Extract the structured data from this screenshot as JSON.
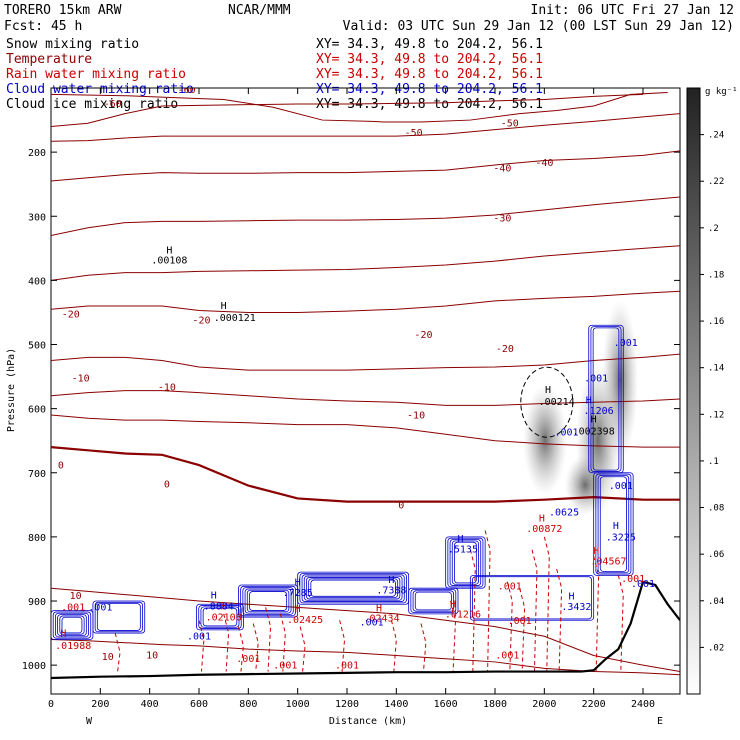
{
  "header": {
    "model": "TORERO  15km ARW",
    "center": "NCAR/MMM",
    "init": "Init: 06 UTC Fri 27 Jan 12",
    "fcst": "Fcst:   45 h",
    "valid": "Valid: 03 UTC Sun 29 Jan 12 (00 LST Sun 29 Jan 12)"
  },
  "fields": [
    {
      "name": "Snow mixing ratio",
      "xy": "XY=  34.3, 49.8 to 204.2, 56.1",
      "color": "#000000",
      "xy_color": "#000000"
    },
    {
      "name": "Temperature",
      "xy": "XY=  34.3, 49.8 to 204.2, 56.1",
      "color": "#8b0000",
      "xy_color": "#cc0000"
    },
    {
      "name": "Rain water mixing ratio",
      "xy": "XY=  34.3, 49.8 to 204.2, 56.1",
      "color": "#cc0000",
      "xy_color": "#cc0000"
    },
    {
      "name": "Cloud water mixing ratio",
      "xy": "XY=  34.3, 49.8 to 204.2, 56.1",
      "color": "#0000cc",
      "xy_color": "#0000cc"
    },
    {
      "name": "Cloud ice mixing ratio",
      "xy": "XY=  34.3, 49.8 to 204.2, 56.1",
      "color": "#000000",
      "xy_color": "#000000"
    }
  ],
  "chart_data": {
    "type": "contour-cross-section",
    "xlabel": "Distance (km)",
    "ylabel": "Pressure (hPa)",
    "x_ticks": [
      0,
      200,
      400,
      600,
      800,
      1000,
      1200,
      1400,
      1600,
      1800,
      2000,
      2200,
      2400
    ],
    "y_ticks": [
      200,
      300,
      400,
      500,
      600,
      700,
      800,
      900,
      1000
    ],
    "xlim": [
      0,
      2550
    ],
    "ylim": [
      1045,
      100
    ],
    "left_end": "W",
    "right_end": "E",
    "colorbar": {
      "unit": "g kg⁻¹",
      "ticks": [
        ".02",
        ".04",
        ".06",
        ".08",
        ".1",
        ".12",
        ".14",
        ".16",
        ".18",
        ".2",
        ".22",
        ".24"
      ],
      "values": [
        0.02,
        0.04,
        0.06,
        0.08,
        0.1,
        0.12,
        0.14,
        0.16,
        0.18,
        0.2,
        0.22,
        0.24
      ],
      "max": 0.26
    },
    "temperature_isotherms": [
      {
        "label": "-60",
        "p": [
          110,
          112,
          115,
          118,
          130,
          150,
          152,
          153,
          153,
          150,
          140,
          135,
          128,
          110,
          107
        ],
        "x": [
          0,
          300,
          500,
          700,
          900,
          1100,
          1300,
          1350,
          1500,
          1700,
          1900,
          2050,
          2200,
          2350,
          2500
        ]
      },
      {
        "label": "-60",
        "p": [
          160,
          155,
          140,
          128,
          127,
          126,
          125,
          125,
          124,
          123,
          120,
          118,
          113,
          110
        ],
        "x": [
          0,
          150,
          300,
          450,
          600,
          800,
          1000,
          1200,
          1400,
          1600,
          1800,
          2000,
          2200,
          2400
        ]
      },
      {
        "label": "-50",
        "p": [
          183,
          182,
          178,
          175,
          175,
          175,
          175,
          175,
          175,
          172,
          165,
          158,
          152,
          145,
          140
        ],
        "x": [
          0,
          150,
          300,
          450,
          600,
          800,
          1000,
          1200,
          1400,
          1600,
          1800,
          2000,
          2200,
          2400,
          2550
        ]
      },
      {
        "label": "-40",
        "p": [
          245,
          240,
          235,
          232,
          233,
          233,
          232,
          232,
          230,
          228,
          220,
          213,
          210,
          205,
          198
        ],
        "x": [
          0,
          150,
          300,
          450,
          600,
          800,
          1000,
          1200,
          1400,
          1600,
          1800,
          2000,
          2200,
          2400,
          2550
        ]
      },
      {
        "label": "-30",
        "p": [
          330,
          318,
          310,
          308,
          308,
          307,
          306,
          306,
          305,
          303,
          298,
          290,
          282,
          275,
          270
        ],
        "x": [
          0,
          150,
          300,
          450,
          600,
          800,
          1000,
          1200,
          1400,
          1600,
          1800,
          2000,
          2200,
          2400,
          2550
        ]
      },
      {
        "label": "-20",
        "p": [
          400,
          392,
          388,
          388,
          386,
          385,
          384,
          383,
          380,
          376,
          370,
          362,
          356,
          350,
          346
        ],
        "x": [
          0,
          150,
          300,
          450,
          600,
          800,
          1000,
          1200,
          1400,
          1600,
          1800,
          2000,
          2200,
          2400,
          2550
        ]
      },
      {
        "label": "-20",
        "p": [
          445,
          440,
          440,
          440,
          447,
          450,
          450,
          448,
          445,
          440,
          432,
          428,
          425,
          420,
          417
        ],
        "x": [
          0,
          150,
          300,
          450,
          600,
          800,
          1000,
          1200,
          1400,
          1600,
          1800,
          2000,
          2200,
          2400,
          2550
        ]
      },
      {
        "label": "-10",
        "p": [
          525,
          520,
          520,
          525,
          535,
          540,
          540,
          540,
          538,
          536,
          535,
          532,
          525,
          520,
          515
        ],
        "x": [
          0,
          150,
          300,
          450,
          600,
          800,
          1000,
          1200,
          1400,
          1600,
          1800,
          2000,
          2200,
          2400,
          2550
        ]
      },
      {
        "label": "-10",
        "p": [
          580,
          575,
          572,
          572,
          575,
          580,
          585,
          588,
          590,
          595,
          595,
          592,
          590,
          588,
          585
        ],
        "x": [
          0,
          150,
          300,
          450,
          600,
          800,
          1000,
          1200,
          1400,
          1600,
          1800,
          2000,
          2200,
          2400,
          2550
        ]
      },
      {
        "label": "-10",
        "p": [
          610,
          615,
          618,
          618,
          620,
          622,
          625,
          625,
          630,
          640,
          650,
          655,
          658,
          660,
          660
        ],
        "x": [
          0,
          150,
          300,
          450,
          600,
          800,
          1000,
          1200,
          1400,
          1600,
          1800,
          2000,
          2200,
          2400,
          2550
        ]
      },
      {
        "label": "0",
        "p": [
          660,
          665,
          670,
          672,
          688,
          720,
          740,
          745,
          745,
          745,
          745,
          742,
          738,
          742,
          742
        ],
        "x": [
          0,
          150,
          300,
          450,
          600,
          800,
          1000,
          1200,
          1400,
          1600,
          1800,
          2000,
          2200,
          2400,
          2550
        ],
        "bold": true
      },
      {
        "label": "10",
        "p": [
          880,
          885,
          890,
          895,
          900,
          905,
          910,
          915,
          920,
          930,
          940,
          955,
          985,
          1000,
          1010
        ],
        "x": [
          0,
          150,
          300,
          450,
          600,
          800,
          1000,
          1200,
          1400,
          1600,
          1800,
          2000,
          2200,
          2400,
          2550
        ]
      },
      {
        "label": "10",
        "p": [
          960,
          962,
          965,
          968,
          970,
          975,
          978,
          980,
          985,
          990,
          995,
          1005,
          1010,
          1012,
          1015
        ],
        "x": [
          0,
          150,
          300,
          450,
          600,
          800,
          1000,
          1200,
          1400,
          1600,
          1800,
          2000,
          2200,
          2400,
          2550
        ]
      }
    ],
    "terrain": {
      "x": [
        0,
        200,
        400,
        600,
        800,
        1000,
        1200,
        1400,
        1600,
        1800,
        2000,
        2150,
        2200,
        2250,
        2300,
        2350,
        2400,
        2450,
        2500,
        2550
      ],
      "p": [
        1020,
        1018,
        1017,
        1015,
        1014,
        1013,
        1012,
        1011,
        1011,
        1010,
        1010,
        1010,
        1008,
        990,
        975,
        935,
        870,
        875,
        905,
        930
      ]
    },
    "temp_labels": [
      {
        "text": "-60",
        "x": 250,
        "p": 130
      },
      {
        "text": "-60",
        "x": 550,
        "p": 108
      },
      {
        "text": "-50",
        "x": 1470,
        "p": 175
      },
      {
        "text": "-50",
        "x": 1860,
        "p": 160
      },
      {
        "text": "-40",
        "x": 1830,
        "p": 230
      },
      {
        "text": "-40",
        "x": 2000,
        "p": 222
      },
      {
        "text": "-30",
        "x": 1830,
        "p": 308
      },
      {
        "text": "-20",
        "x": 80,
        "p": 458
      },
      {
        "text": "-20",
        "x": 610,
        "p": 467
      },
      {
        "text": "-20",
        "x": 1510,
        "p": 490
      },
      {
        "text": "-20",
        "x": 1840,
        "p": 512
      },
      {
        "text": "-10",
        "x": 120,
        "p": 558
      },
      {
        "text": "-10",
        "x": 470,
        "p": 572
      },
      {
        "text": "-10",
        "x": 1480,
        "p": 615
      },
      {
        "text": "0",
        "x": 40,
        "p": 693
      },
      {
        "text": "0",
        "x": 470,
        "p": 723
      },
      {
        "text": "0",
        "x": 1420,
        "p": 756
      },
      {
        "text": "10",
        "x": 100,
        "p": 897
      },
      {
        "text": "10",
        "x": 230,
        "p": 992
      },
      {
        "text": "10",
        "x": 410,
        "p": 990
      }
    ],
    "annotations": [
      {
        "text": "H",
        "x": 480,
        "p": 358,
        "color": "#000"
      },
      {
        "text": ".00108",
        "x": 480,
        "p": 374,
        "color": "#000"
      },
      {
        "text": "H",
        "x": 700,
        "p": 445,
        "color": "#000"
      },
      {
        "text": ".000121",
        "x": 745,
        "p": 463,
        "color": "#000"
      },
      {
        "text": "H",
        "x": 2015,
        "p": 576,
        "color": "#000"
      },
      {
        "text": ".00214",
        "x": 2050,
        "p": 594,
        "color": "#000"
      },
      {
        "text": "H",
        "x": 2200,
        "p": 622,
        "color": "#000"
      },
      {
        "text": ".002398",
        "x": 2200,
        "p": 640,
        "color": "#000"
      },
      {
        "text": ".001",
        "x": 2210,
        "p": 558,
        "color": "#0000cc"
      },
      {
        "text": ".001",
        "x": 2330,
        "p": 502,
        "color": "#0000cc"
      },
      {
        "text": "H",
        "x": 2180,
        "p": 592,
        "color": "#0000cc"
      },
      {
        "text": ".1206",
        "x": 2220,
        "p": 608,
        "color": "#0000cc"
      },
      {
        "text": ".001",
        "x": 2090,
        "p": 642,
        "color": "#0000cc"
      },
      {
        "text": ".001",
        "x": 2310,
        "p": 725,
        "color": "#0000cc"
      },
      {
        "text": ".0625",
        "x": 2080,
        "p": 767,
        "color": "#0000cc"
      },
      {
        "text": "H",
        "x": 1990,
        "p": 776,
        "color": "#cc0000"
      },
      {
        "text": ".00872",
        "x": 2000,
        "p": 792,
        "color": "#cc0000"
      },
      {
        "text": "H",
        "x": 2290,
        "p": 788,
        "color": "#0000cc"
      },
      {
        "text": ".3225",
        "x": 2310,
        "p": 806,
        "color": "#0000cc"
      },
      {
        "text": "H",
        "x": 2210,
        "p": 827,
        "color": "#cc0000"
      },
      {
        "text": ".04567",
        "x": 2260,
        "p": 843,
        "color": "#cc0000"
      },
      {
        "text": ".001",
        "x": 2400,
        "p": 878,
        "color": "#0000cc"
      },
      {
        "text": "H",
        "x": 1660,
        "p": 808,
        "color": "#0000cc"
      },
      {
        "text": ".5135",
        "x": 1670,
        "p": 824,
        "color": "#0000cc"
      },
      {
        "text": ".001",
        "x": 1860,
        "p": 882,
        "color": "#cc0000"
      },
      {
        "text": "H",
        "x": 1380,
        "p": 872,
        "color": "#0000cc"
      },
      {
        "text": ".7388",
        "x": 1380,
        "p": 888,
        "color": "#0000cc"
      },
      {
        "text": "H",
        "x": 1000,
        "p": 876,
        "color": "#0000cc"
      },
      {
        "text": ".7285",
        "x": 1000,
        "p": 892,
        "color": "#0000cc"
      },
      {
        "text": "H",
        "x": 2110,
        "p": 898,
        "color": "#0000cc"
      },
      {
        "text": ".3432",
        "x": 2130,
        "p": 914,
        "color": "#0000cc"
      },
      {
        "text": "H",
        "x": 660,
        "p": 896,
        "color": "#0000cc"
      },
      {
        "text": ".8884",
        "x": 680,
        "p": 913,
        "color": "#0000cc"
      },
      {
        "text": "H",
        "x": 700,
        "p": 913,
        "color": "#cc0000"
      },
      {
        "text": ".02108",
        "x": 700,
        "p": 930,
        "color": "#cc0000"
      },
      {
        "text": "H",
        "x": 1000,
        "p": 917,
        "color": "#cc0000"
      },
      {
        "text": ".02425",
        "x": 1030,
        "p": 934,
        "color": "#cc0000"
      },
      {
        "text": "H",
        "x": 1330,
        "p": 916,
        "color": "#cc0000"
      },
      {
        "text": ".02434",
        "x": 1340,
        "p": 932,
        "color": "#cc0000"
      },
      {
        "text": "H",
        "x": 1630,
        "p": 910,
        "color": "#cc0000"
      },
      {
        "text": ".01216",
        "x": 1670,
        "p": 926,
        "color": "#cc0000"
      },
      {
        "text": ".001",
        "x": 1900,
        "p": 936,
        "color": "#cc0000"
      },
      {
        "text": ".001",
        "x": 1300,
        "p": 938,
        "color": "#0000cc"
      },
      {
        "text": ".001",
        "x": 90,
        "p": 915,
        "color": "#cc0000"
      },
      {
        "text": ".001",
        "x": 200,
        "p": 915,
        "color": "#0000cc"
      },
      {
        "text": ".001",
        "x": 600,
        "p": 960,
        "color": "#0000cc"
      },
      {
        "text": "H",
        "x": 50,
        "p": 955,
        "color": "#cc0000"
      },
      {
        "text": ".01988",
        "x": 90,
        "p": 975,
        "color": "#cc0000"
      },
      {
        "text": ".001",
        "x": 800,
        "p": 995,
        "color": "#cc0000"
      },
      {
        "text": ".001",
        "x": 950,
        "p": 1005,
        "color": "#cc0000"
      },
      {
        "text": ".001",
        "x": 1200,
        "p": 1005,
        "color": "#cc0000"
      },
      {
        "text": ".001",
        "x": 1850,
        "p": 990,
        "color": "#cc0000"
      },
      {
        "text": ".001",
        "x": 2360,
        "p": 870,
        "color": "#cc0000"
      }
    ]
  }
}
